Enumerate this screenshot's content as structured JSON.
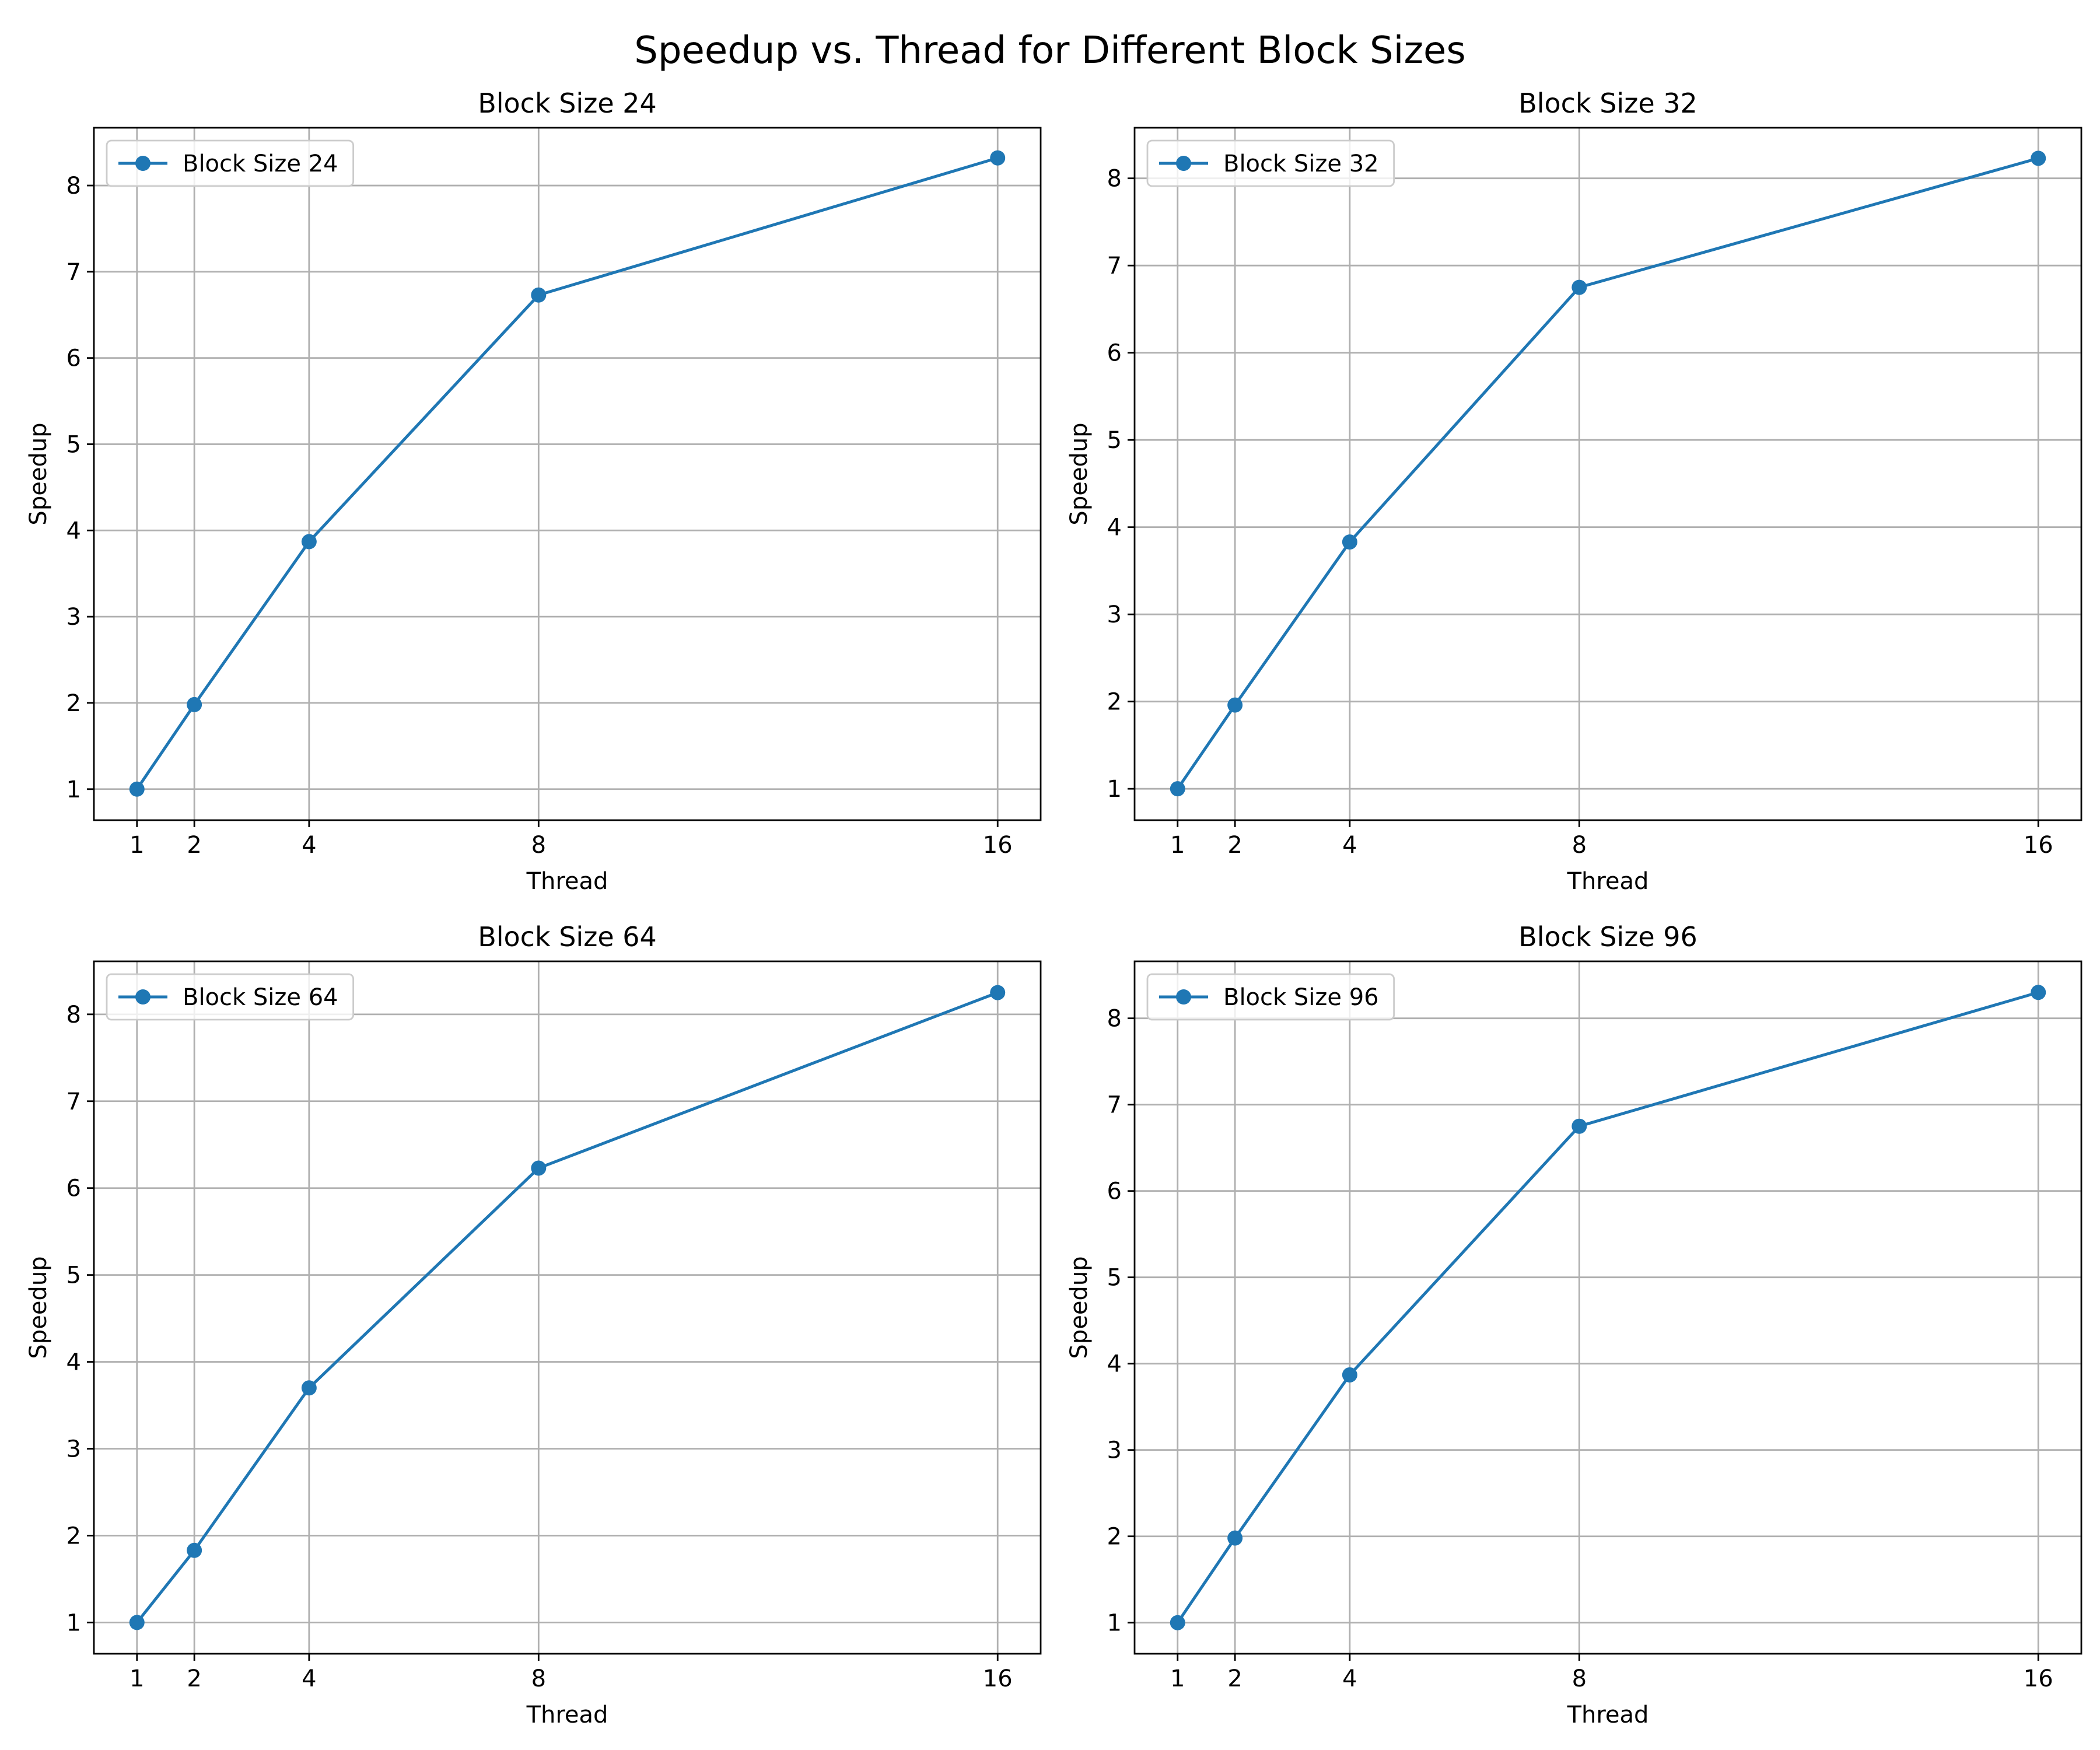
{
  "figure": {
    "suptitle": "Speedup vs. Thread for Different Block Sizes"
  },
  "colors": {
    "series": "#1f77b4",
    "grid": "#b0b0b0",
    "axes": "#000000"
  },
  "chart_data": [
    {
      "type": "line",
      "title": "Block Size 24",
      "xlabel": "Thread",
      "ylabel": "Speedup",
      "x": [
        1,
        2,
        4,
        8,
        16
      ],
      "xticks": [
        1,
        2,
        4,
        8,
        16
      ],
      "yticks": [
        1,
        2,
        3,
        4,
        5,
        6,
        7,
        8
      ],
      "xlim": [
        0.25,
        16.75
      ],
      "ylim": [
        0.64,
        8.67
      ],
      "grid": true,
      "legend_position": "upper-left",
      "series": [
        {
          "name": "Block Size 24",
          "values": [
            1.0,
            1.98,
            3.87,
            6.73,
            8.32
          ],
          "marker": "circle"
        }
      ]
    },
    {
      "type": "line",
      "title": "Block Size 32",
      "xlabel": "Thread",
      "ylabel": "Speedup",
      "x": [
        1,
        2,
        4,
        8,
        16
      ],
      "xticks": [
        1,
        2,
        4,
        8,
        16
      ],
      "yticks": [
        1,
        2,
        3,
        4,
        5,
        6,
        7,
        8
      ],
      "xlim": [
        0.25,
        16.75
      ],
      "ylim": [
        0.64,
        8.58
      ],
      "grid": true,
      "legend_position": "upper-left",
      "series": [
        {
          "name": "Block Size 32",
          "values": [
            1.0,
            1.96,
            3.83,
            6.75,
            8.23
          ],
          "marker": "circle"
        }
      ]
    },
    {
      "type": "line",
      "title": "Block Size 64",
      "xlabel": "Thread",
      "ylabel": "Speedup",
      "x": [
        1,
        2,
        4,
        8,
        16
      ],
      "xticks": [
        1,
        2,
        4,
        8,
        16
      ],
      "yticks": [
        1,
        2,
        3,
        4,
        5,
        6,
        7,
        8
      ],
      "xlim": [
        0.25,
        16.75
      ],
      "ylim": [
        0.64,
        8.61
      ],
      "grid": true,
      "legend_position": "upper-left",
      "series": [
        {
          "name": "Block Size 64",
          "values": [
            1.0,
            1.83,
            3.7,
            6.23,
            8.25
          ],
          "marker": "circle"
        }
      ]
    },
    {
      "type": "line",
      "title": "Block Size 96",
      "xlabel": "Thread",
      "ylabel": "Speedup",
      "x": [
        1,
        2,
        4,
        8,
        16
      ],
      "xticks": [
        1,
        2,
        4,
        8,
        16
      ],
      "yticks": [
        1,
        2,
        3,
        4,
        5,
        6,
        7,
        8
      ],
      "xlim": [
        0.25,
        16.75
      ],
      "ylim": [
        0.64,
        8.66
      ],
      "grid": true,
      "legend_position": "upper-left",
      "series": [
        {
          "name": "Block Size 96",
          "values": [
            1.0,
            1.98,
            3.87,
            6.75,
            8.3
          ],
          "marker": "circle"
        }
      ]
    }
  ]
}
